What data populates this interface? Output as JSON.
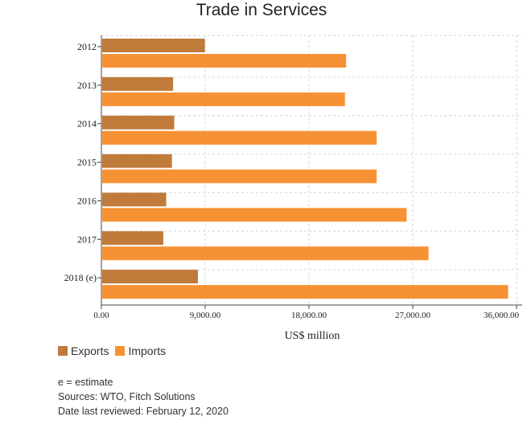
{
  "chart_data": {
    "type": "bar",
    "orientation": "horizontal",
    "title": "Trade in Services",
    "xlabel": "US$ million",
    "ylabel": "",
    "categories": [
      "2012",
      "2013",
      "2014",
      "2015",
      "2016",
      "2017",
      "2018 (e)"
    ],
    "series": [
      {
        "name": "Exports",
        "color": "#c07a3a",
        "values": [
          8900,
          6150,
          6250,
          6050,
          5550,
          5300,
          8300
        ]
      },
      {
        "name": "Imports",
        "color": "#f79234",
        "values": [
          21150,
          21050,
          23800,
          23800,
          26400,
          28300,
          35200
        ]
      }
    ],
    "xlim": [
      0,
      36000
    ],
    "xticks": [
      0,
      9000,
      18000,
      27000,
      36000
    ],
    "xtick_labels": [
      "0.00",
      "9,000.00",
      "18,000.00",
      "27,000.00",
      "36,000.00"
    ],
    "grid": true,
    "legend_position": "bottom-left"
  },
  "notes": {
    "estimate": "e = estimate",
    "sources": "Sources: WTO, Fitch Solutions",
    "reviewed": "Date last reviewed: February 12, 2020"
  }
}
